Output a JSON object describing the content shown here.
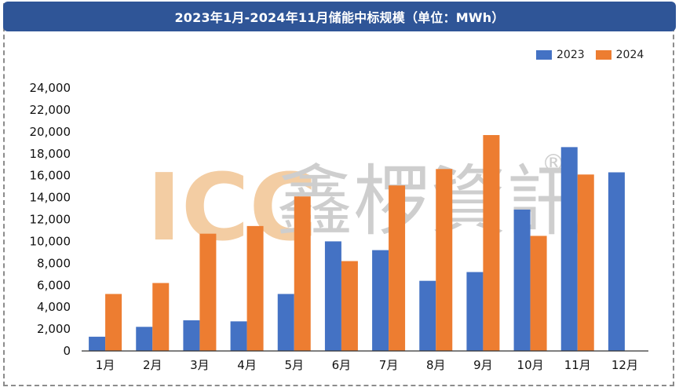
{
  "header": {
    "title": "2023年1月-2024年11月储能中标规模（单位：MWh）"
  },
  "watermark": {
    "brand": "ICC",
    "name": "鑫椤資訊",
    "mark": "®"
  },
  "colors": {
    "title_bg": "#2f5597",
    "series_2023": "#4472c4",
    "series_2024": "#ed7d31",
    "watermark_brand": "#f2c89a",
    "watermark_name": "#c9c9c9"
  },
  "chart_data": {
    "type": "bar",
    "title": "2023年1月-2024年11月储能中标规模（单位：MWh）",
    "categories": [
      "1月",
      "2月",
      "3月",
      "4月",
      "5月",
      "6月",
      "7月",
      "8月",
      "9月",
      "10月",
      "11月",
      "12月"
    ],
    "series": [
      {
        "name": "2023",
        "color": "#4472c4",
        "values": [
          1300,
          2200,
          2800,
          2700,
          5200,
          10000,
          9200,
          6400,
          7200,
          12900,
          18600,
          16300
        ]
      },
      {
        "name": "2024",
        "color": "#ed7d31",
        "values": [
          5200,
          6200,
          10700,
          11400,
          14100,
          8200,
          15100,
          16600,
          19700,
          10500,
          16100,
          null
        ]
      }
    ],
    "ylim": [
      0,
      24000
    ],
    "yticks": [
      0,
      2000,
      4000,
      6000,
      8000,
      10000,
      12000,
      14000,
      16000,
      18000,
      20000,
      22000,
      24000
    ],
    "ytick_labels": [
      "0",
      "2,000",
      "4,000",
      "6,000",
      "8,000",
      "10,000",
      "12,000",
      "14,000",
      "16,000",
      "18,000",
      "20,000",
      "22,000",
      "24,000"
    ],
    "legend_position": "top-right",
    "grid": false
  }
}
